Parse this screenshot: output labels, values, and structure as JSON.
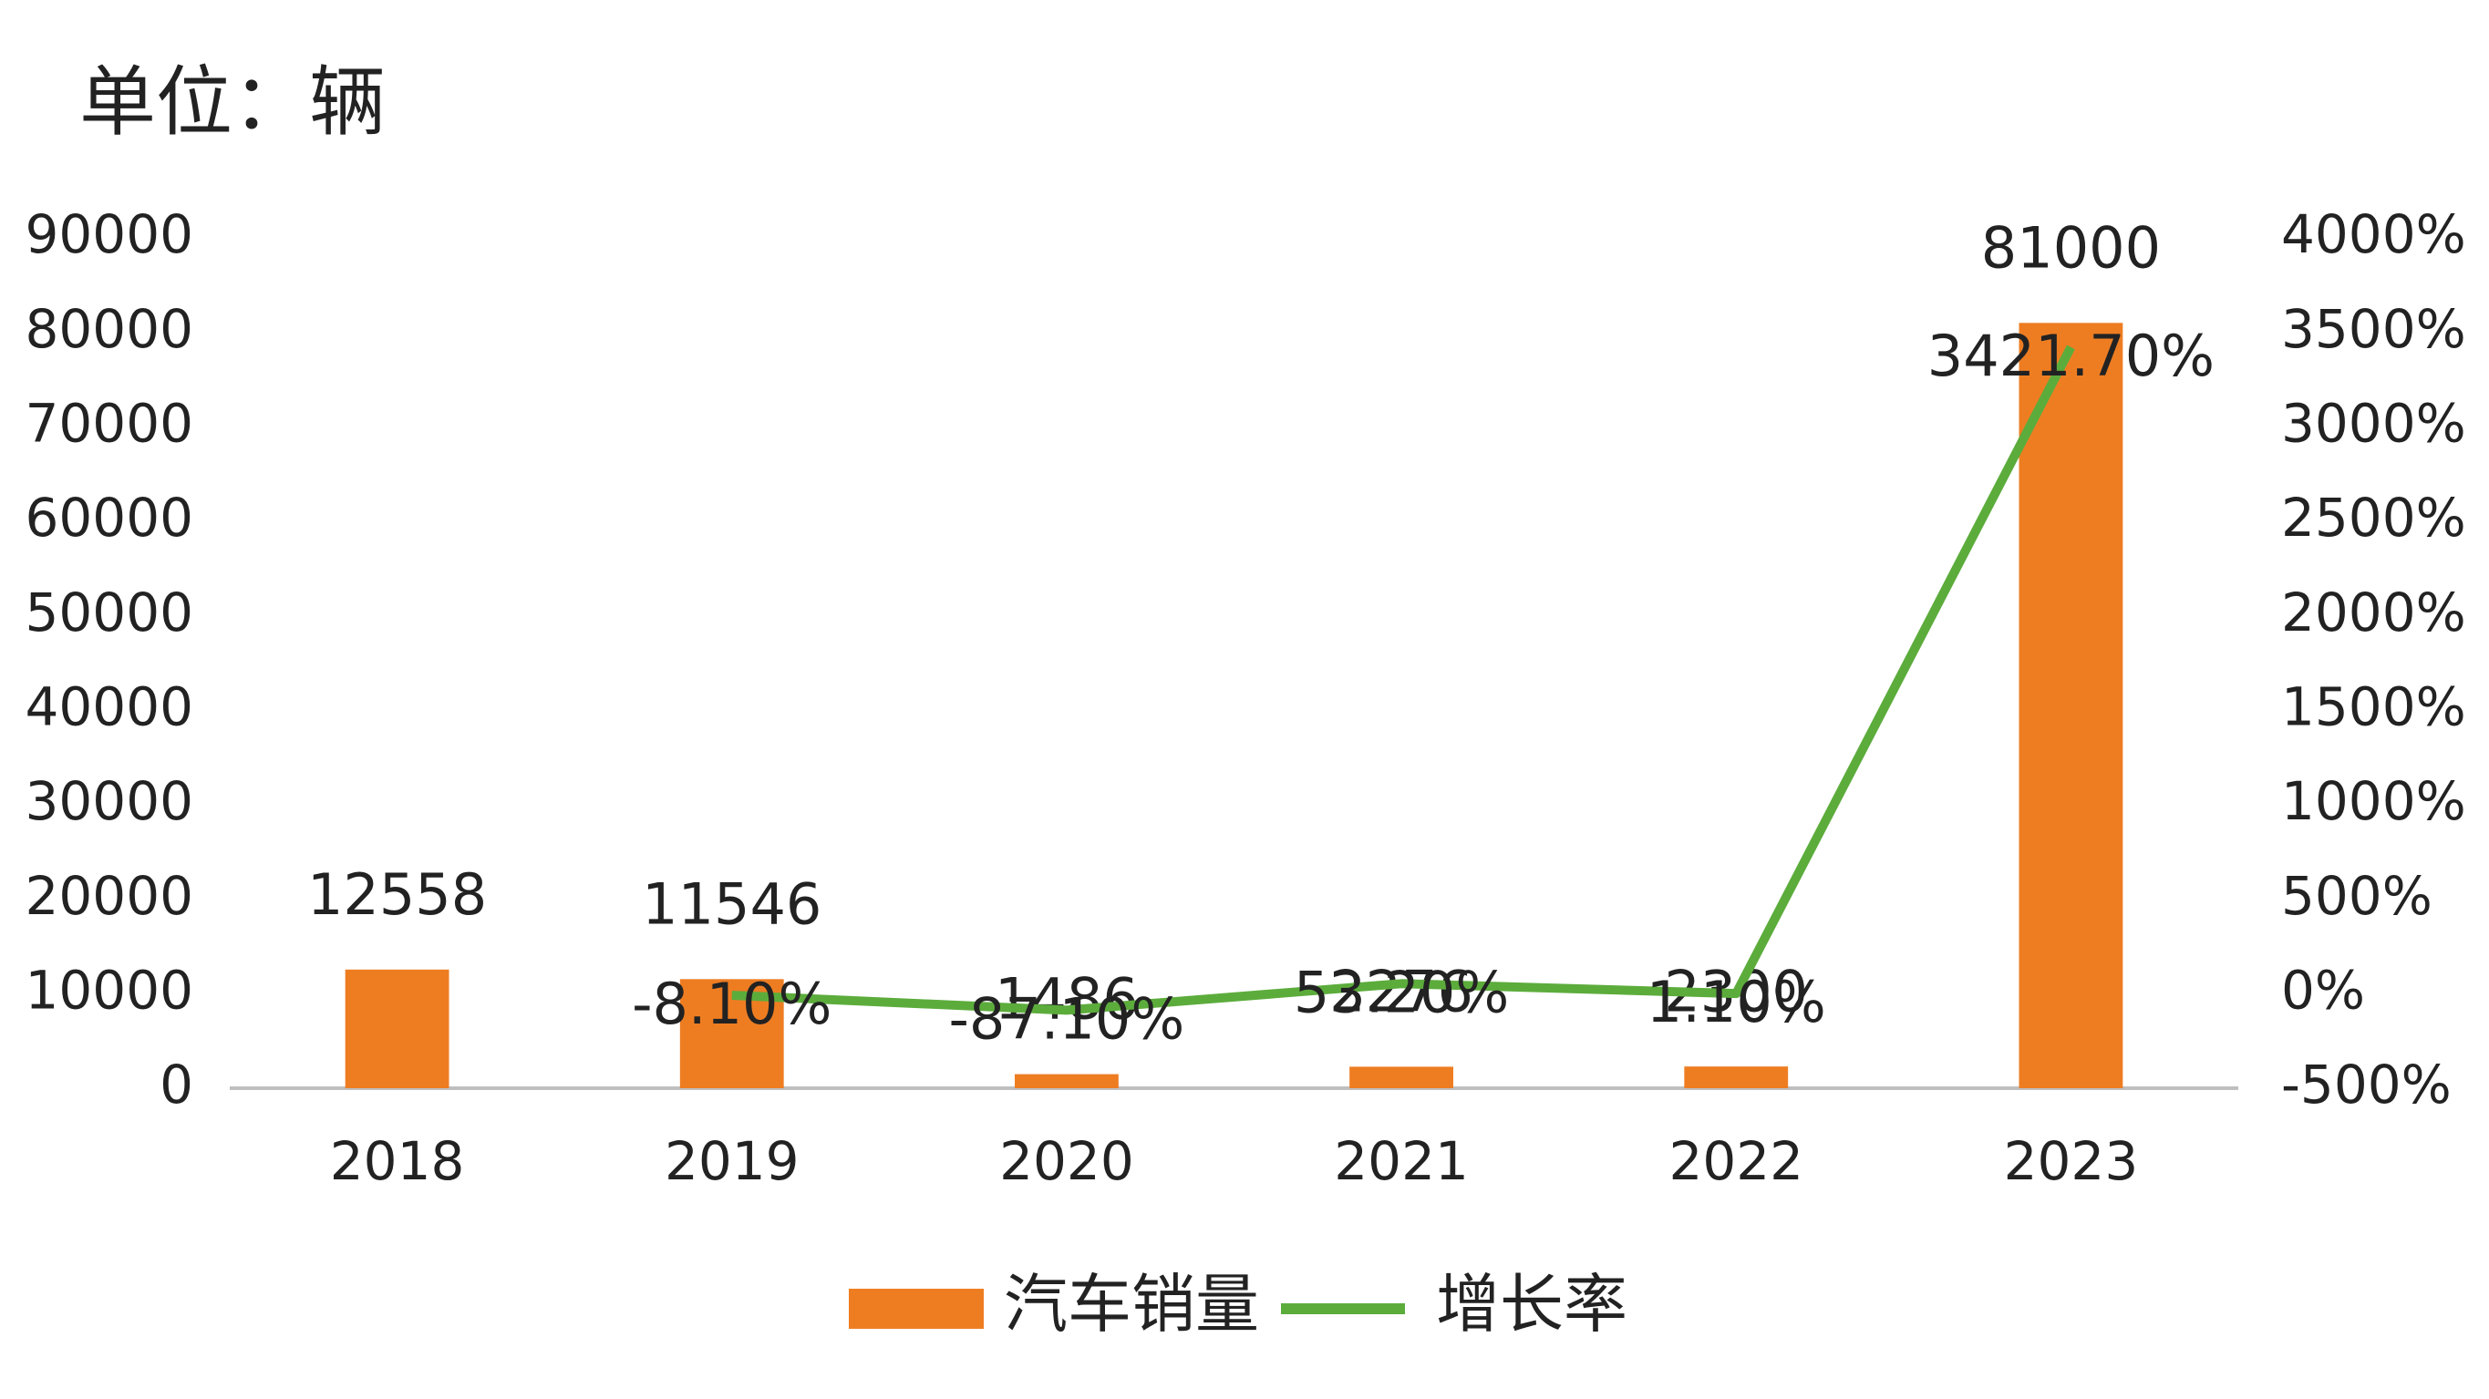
{
  "chart_data": {
    "type": "bar",
    "title": "单位：辆",
    "categories": [
      "2018",
      "2019",
      "2020",
      "2021",
      "2022",
      "2023"
    ],
    "series": [
      {
        "name": "汽车销量",
        "type": "bar",
        "color": "#ee7d22",
        "values": [
          12558,
          11546,
          1486,
          2276,
          2300,
          81000
        ]
      },
      {
        "name": "增长率",
        "type": "line",
        "axis": "y2",
        "color": "#5cac3c",
        "values": [
          null,
          -8.1,
          -87.1,
          53.2,
          1.1,
          3421.7
        ],
        "value_labels": [
          null,
          "-8.10%",
          "-87.10%",
          "53.20%",
          "1.10%",
          "3421.70%"
        ]
      }
    ],
    "ylim": [
      0,
      90000
    ],
    "yticks": [
      0,
      10000,
      20000,
      30000,
      40000,
      50000,
      60000,
      70000,
      80000,
      90000
    ],
    "y2lim": [
      -500,
      4000
    ],
    "y2ticks": [
      {
        "value": -500,
        "label": "-500%"
      },
      {
        "value": 0,
        "label": "0%"
      },
      {
        "value": 500,
        "label": "500%"
      },
      {
        "value": 1000,
        "label": "1000%"
      },
      {
        "value": 1500,
        "label": "1500%"
      },
      {
        "value": 2000,
        "label": "2000%"
      },
      {
        "value": 2500,
        "label": "2500%"
      },
      {
        "value": 3000,
        "label": "3000%"
      },
      {
        "value": 3500,
        "label": "3500%"
      },
      {
        "value": 4000,
        "label": "4000%"
      }
    ],
    "grid": false,
    "legend": "bottom"
  }
}
